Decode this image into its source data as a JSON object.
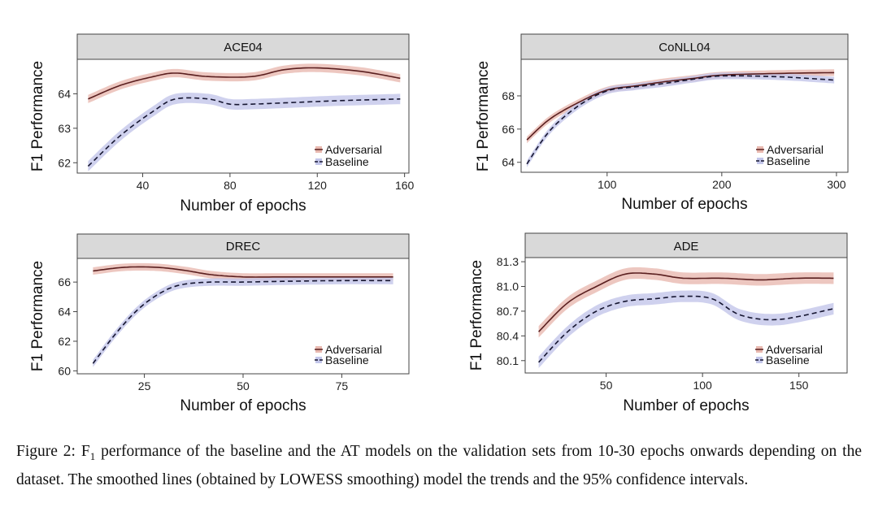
{
  "figure": {
    "caption_label": "Figure 2:",
    "caption_f": "F",
    "caption_sub": "1",
    "caption_text": " performance of the baseline and the AT models on the validation sets from 10-30 epochs onwards depending on the dataset. The smoothed lines (obtained by LOWESS smoothing) model the trends and the 95% confidence intervals."
  },
  "colors": {
    "adversarial_line": "#5a1f1f",
    "adversarial_band": "#e9b9b0",
    "baseline_line": "#151530",
    "baseline_band": "#c3c6ea",
    "panel_header": "#d9d9d9"
  },
  "chart_data": [
    {
      "type": "line",
      "title": "ACE04",
      "xlabel": "Number of epochs",
      "ylabel": "F1 Performance",
      "xlim": [
        10,
        162
      ],
      "ylim": [
        61.7,
        65.0
      ],
      "xticks": [
        40,
        80,
        120,
        160
      ],
      "xtick_labels": [
        "40",
        "80",
        "120",
        "160"
      ],
      "yticks": [
        62,
        63,
        64
      ],
      "ytick_labels": [
        "62",
        "63",
        "64"
      ],
      "legend": [
        "Adversarial",
        "Baseline"
      ],
      "series": [
        {
          "name": "Adversarial",
          "x": [
            15,
            30,
            45,
            55,
            70,
            90,
            105,
            120,
            140,
            158
          ],
          "y": [
            63.85,
            64.25,
            64.5,
            64.6,
            64.5,
            64.5,
            64.7,
            64.75,
            64.65,
            64.45
          ],
          "band": 0.12
        },
        {
          "name": "Baseline",
          "x": [
            15,
            30,
            45,
            55,
            70,
            80,
            90,
            110,
            130,
            158
          ],
          "y": [
            61.9,
            62.8,
            63.5,
            63.85,
            63.85,
            63.7,
            63.7,
            63.75,
            63.8,
            63.85
          ],
          "band": 0.15
        }
      ]
    },
    {
      "type": "line",
      "title": "CoNLL04",
      "xlabel": "Number of epochs",
      "ylabel": "F1 Performance",
      "xlim": [
        25,
        310
      ],
      "ylim": [
        63.4,
        70.2
      ],
      "xticks": [
        100,
        200,
        300
      ],
      "xtick_labels": [
        "100",
        "200",
        "300"
      ],
      "yticks": [
        64,
        66,
        68
      ],
      "ytick_labels": [
        "64",
        "66",
        "68"
      ],
      "legend": [
        "Adversarial",
        "Baseline"
      ],
      "series": [
        {
          "name": "Adversarial",
          "x": [
            30,
            50,
            75,
            100,
            125,
            150,
            175,
            200,
            250,
            298
          ],
          "y": [
            65.35,
            66.6,
            67.6,
            68.35,
            68.6,
            68.85,
            69.05,
            69.25,
            69.35,
            69.4
          ],
          "band": 0.2
        },
        {
          "name": "Baseline",
          "x": [
            30,
            50,
            75,
            100,
            125,
            150,
            175,
            200,
            250,
            298
          ],
          "y": [
            63.9,
            65.9,
            67.4,
            68.3,
            68.55,
            68.75,
            69.0,
            69.2,
            69.15,
            68.95
          ],
          "band": 0.2
        }
      ]
    },
    {
      "type": "line",
      "title": "DREC",
      "xlabel": "Number of epochs",
      "ylabel": "F1 Performance",
      "xlim": [
        8,
        92
      ],
      "ylim": [
        59.8,
        67.6
      ],
      "xticks": [
        25,
        50,
        75
      ],
      "xtick_labels": [
        "25",
        "50",
        "75"
      ],
      "yticks": [
        60,
        62,
        64,
        66
      ],
      "ytick_labels": [
        "60",
        "62",
        "64",
        "66"
      ],
      "legend": [
        "Adversarial",
        "Baseline"
      ],
      "series": [
        {
          "name": "Adversarial",
          "x": [
            12,
            20,
            28,
            35,
            42,
            50,
            60,
            70,
            80,
            88
          ],
          "y": [
            66.75,
            67.0,
            67.0,
            66.8,
            66.5,
            66.35,
            66.35,
            66.35,
            66.35,
            66.35
          ],
          "band": 0.25
        },
        {
          "name": "Baseline",
          "x": [
            12,
            18,
            24,
            30,
            35,
            42,
            50,
            60,
            75,
            88
          ],
          "y": [
            60.5,
            62.6,
            64.3,
            65.4,
            65.85,
            66.0,
            66.0,
            66.05,
            66.1,
            66.1
          ],
          "band": 0.25
        }
      ]
    },
    {
      "type": "line",
      "title": "ADE",
      "xlabel": "Number of epochs",
      "ylabel": "F1 Performance",
      "xlim": [
        8,
        175
      ],
      "ylim": [
        79.95,
        81.35
      ],
      "xticks": [
        50,
        100,
        150
      ],
      "xtick_labels": [
        "50",
        "100",
        "150"
      ],
      "yticks": [
        80.1,
        80.4,
        80.7,
        81.0,
        81.3
      ],
      "ytick_labels": [
        "80.1",
        "80.4",
        "80.7",
        "81.0",
        "81.3"
      ],
      "legend": [
        "Adversarial",
        "Baseline"
      ],
      "series": [
        {
          "name": "Adversarial",
          "x": [
            15,
            30,
            45,
            60,
            75,
            90,
            110,
            130,
            150,
            168
          ],
          "y": [
            80.45,
            80.8,
            81.0,
            81.15,
            81.15,
            81.1,
            81.1,
            81.08,
            81.1,
            81.1
          ],
          "band": 0.07
        },
        {
          "name": "Baseline",
          "x": [
            15,
            30,
            45,
            60,
            75,
            90,
            105,
            120,
            140,
            168
          ],
          "y": [
            80.08,
            80.45,
            80.7,
            80.82,
            80.85,
            80.88,
            80.85,
            80.65,
            80.6,
            80.73
          ],
          "band": 0.07
        }
      ]
    }
  ]
}
